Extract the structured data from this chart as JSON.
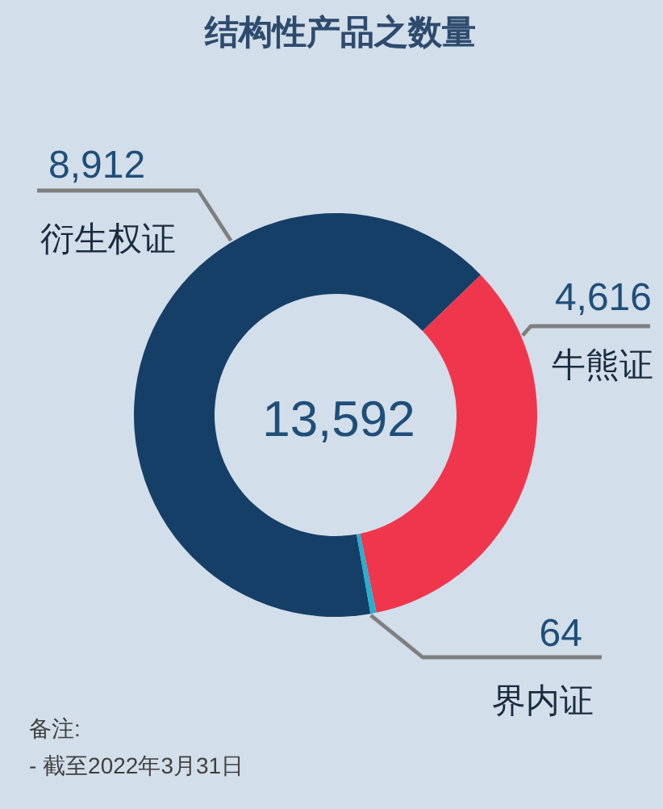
{
  "chart_data": {
    "type": "donut",
    "title": "结构性产品之数量",
    "categories": [
      "衍生权证",
      "牛熊证",
      "界内证"
    ],
    "values": [
      8912,
      4616,
      64
    ],
    "colors": [
      "#153f66",
      "#f0364d",
      "#24b0d0"
    ],
    "value_labels": [
      "8,912",
      "4,616",
      "64"
    ],
    "annotations": [
      "13,592",
      "备注:",
      "- 截至2022年3月31日"
    ]
  }
}
